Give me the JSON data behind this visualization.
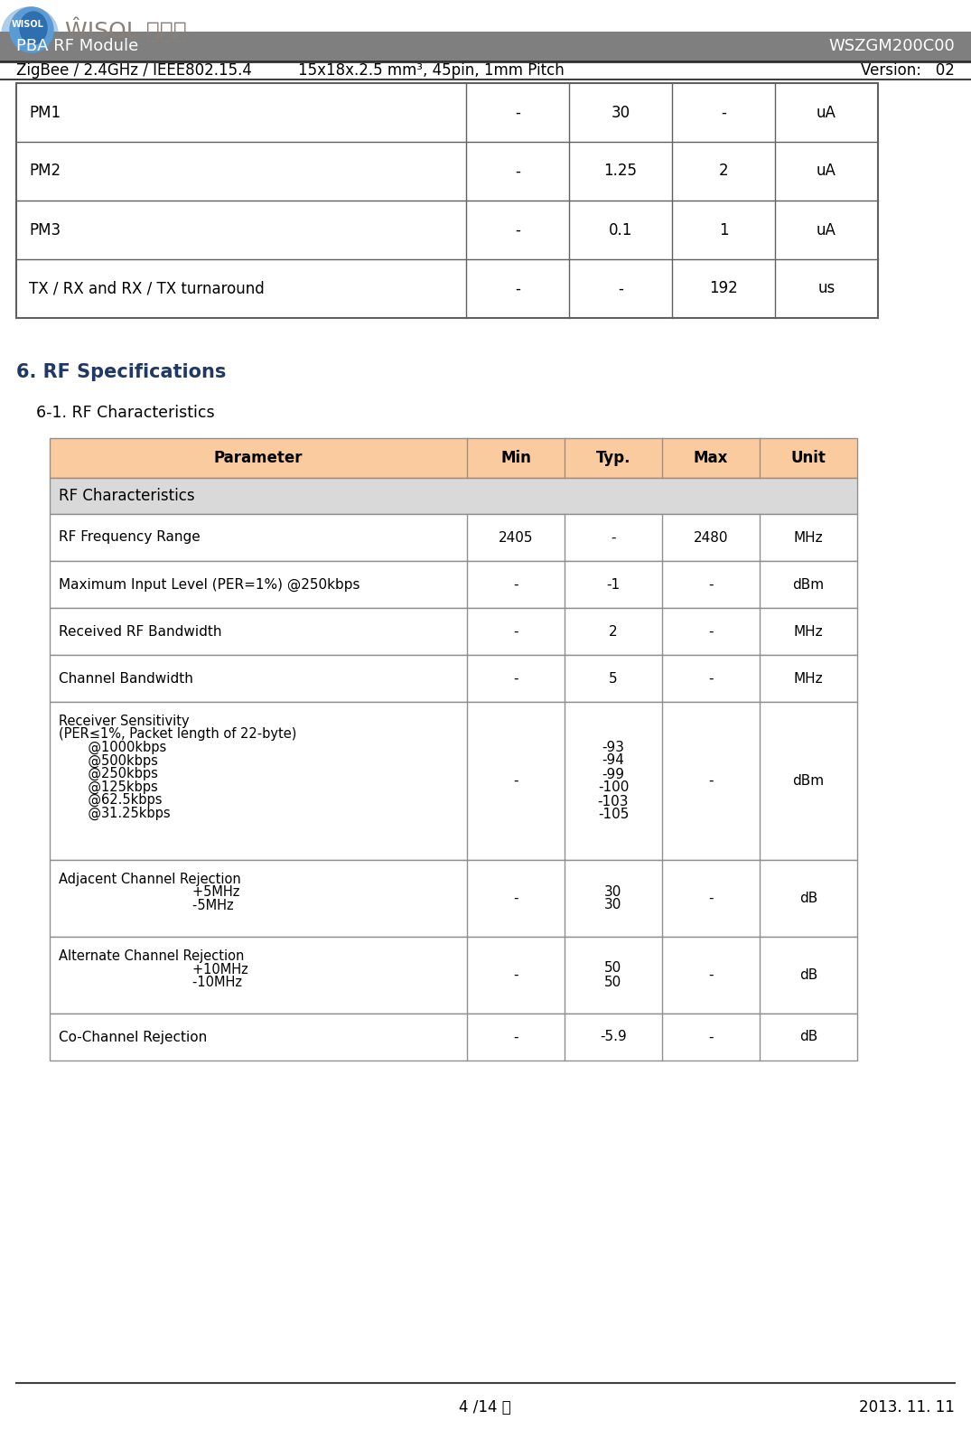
{
  "page_bg": "#ffffff",
  "header_bar_color": "#7F7F7F",
  "header_left": "PBA RF Module",
  "header_right": "WSZGM200C00",
  "subheader_left": "ZigBee / 2.4GHz / IEEE802.15.4",
  "subheader_mid": "15x18x.2.5 mm³, 45pin, 1mm Pitch",
  "subheader_right": "Version:   02",
  "top_table_rows": [
    [
      "PM1",
      "-",
      "30",
      "-",
      "uA"
    ],
    [
      "PM2",
      "-",
      "1.25",
      "2",
      "uA"
    ],
    [
      "PM3",
      "-",
      "0.1",
      "1",
      "uA"
    ],
    [
      "TX / RX and RX / TX turnaround",
      "-",
      "-",
      "192",
      "us"
    ]
  ],
  "section_title": "6. RF Specifications",
  "section_title_color": "#1F3864",
  "subsection_title": "6-1. RF Characteristics",
  "rf_table_header": [
    "Parameter",
    "Min",
    "Typ.",
    "Max",
    "Unit"
  ],
  "rf_table_header_bg": "#FBCBA0",
  "rf_table_subheader": "RF Characteristics",
  "rf_table_subheader_bg": "#D9D9D9",
  "rf_rows": [
    {
      "param": "RF Frequency Range",
      "min": "2405",
      "typ": "-",
      "max": "2480",
      "unit": "MHz",
      "rh": 52
    },
    {
      "param": "Maximum Input Level (PER=1%) @250kbps",
      "min": "-",
      "typ": "-1",
      "max": "-",
      "unit": "dBm",
      "rh": 52
    },
    {
      "param": "Received RF Bandwidth",
      "min": "-",
      "typ": "2",
      "max": "-",
      "unit": "MHz",
      "rh": 52
    },
    {
      "param": "Channel Bandwidth",
      "min": "-",
      "typ": "5",
      "max": "-",
      "unit": "MHz",
      "rh": 52
    },
    {
      "param": "Receiver Sensitivity\n(PER≤1%, Packet length of 22-byte)\n       @1000kbps\n       @500kbps\n       @250kbps\n       @125kbps\n       @62.5kbps\n       @31.25kbps",
      "min": "-",
      "typ": "-93\n-94\n-99\n-100\n-103\n-105",
      "max": "-",
      "unit": "dBm",
      "rh": 175
    },
    {
      "param": "Adjacent Channel Rejection\n                                +5MHz\n                                -5MHz",
      "min": "-",
      "typ": "30\n30",
      "max": "-",
      "unit": "dB",
      "rh": 85
    },
    {
      "param": "Alternate Channel Rejection\n                                +10MHz\n                                -10MHz",
      "min": "-",
      "typ": "50\n50",
      "max": "-",
      "unit": "dB",
      "rh": 85
    },
    {
      "param": "Co-Channel Rejection",
      "min": "-",
      "typ": "-5.9",
      "max": "-",
      "unit": "dB",
      "rh": 52
    }
  ],
  "footer_center": "4 /14 쪽",
  "footer_right": "2013. 11. 11",
  "logo_circle1_color": "#5B9BD5",
  "logo_circle2_color": "#2E75B6",
  "logo_text_color": "#8B8B8B",
  "logo_wisol_color": "#5A5A5A"
}
